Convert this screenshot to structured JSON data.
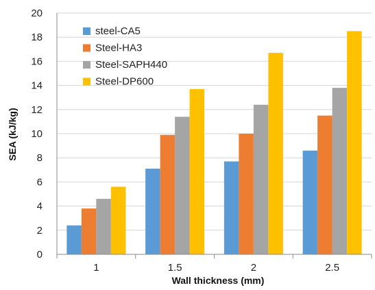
{
  "chart_data": {
    "type": "bar",
    "categories": [
      "1",
      "1.5",
      "2",
      "2.5"
    ],
    "series": [
      {
        "name": "steel-CA5",
        "color": "#5b9bd5",
        "values": [
          2.4,
          7.1,
          7.7,
          8.6
        ]
      },
      {
        "name": "Steel-HA3",
        "color": "#ed7d31",
        "values": [
          3.8,
          9.9,
          10.0,
          11.5
        ]
      },
      {
        "name": "Steel-SAPH440",
        "color": "#a5a5a5",
        "values": [
          4.6,
          11.4,
          12.4,
          13.8
        ]
      },
      {
        "name": "Steel-DP600",
        "color": "#ffc000",
        "values": [
          5.6,
          13.7,
          16.7,
          18.5
        ]
      }
    ],
    "xlabel": "Wall thickness (mm)",
    "ylabel": "SEA (kJ/kg)",
    "ylim": [
      0,
      20
    ],
    "yticks": [
      "0",
      "2",
      "4",
      "6",
      "8",
      "10",
      "12",
      "14",
      "16",
      "18",
      "20"
    ],
    "grid": true,
    "legend_position": "top-left"
  }
}
